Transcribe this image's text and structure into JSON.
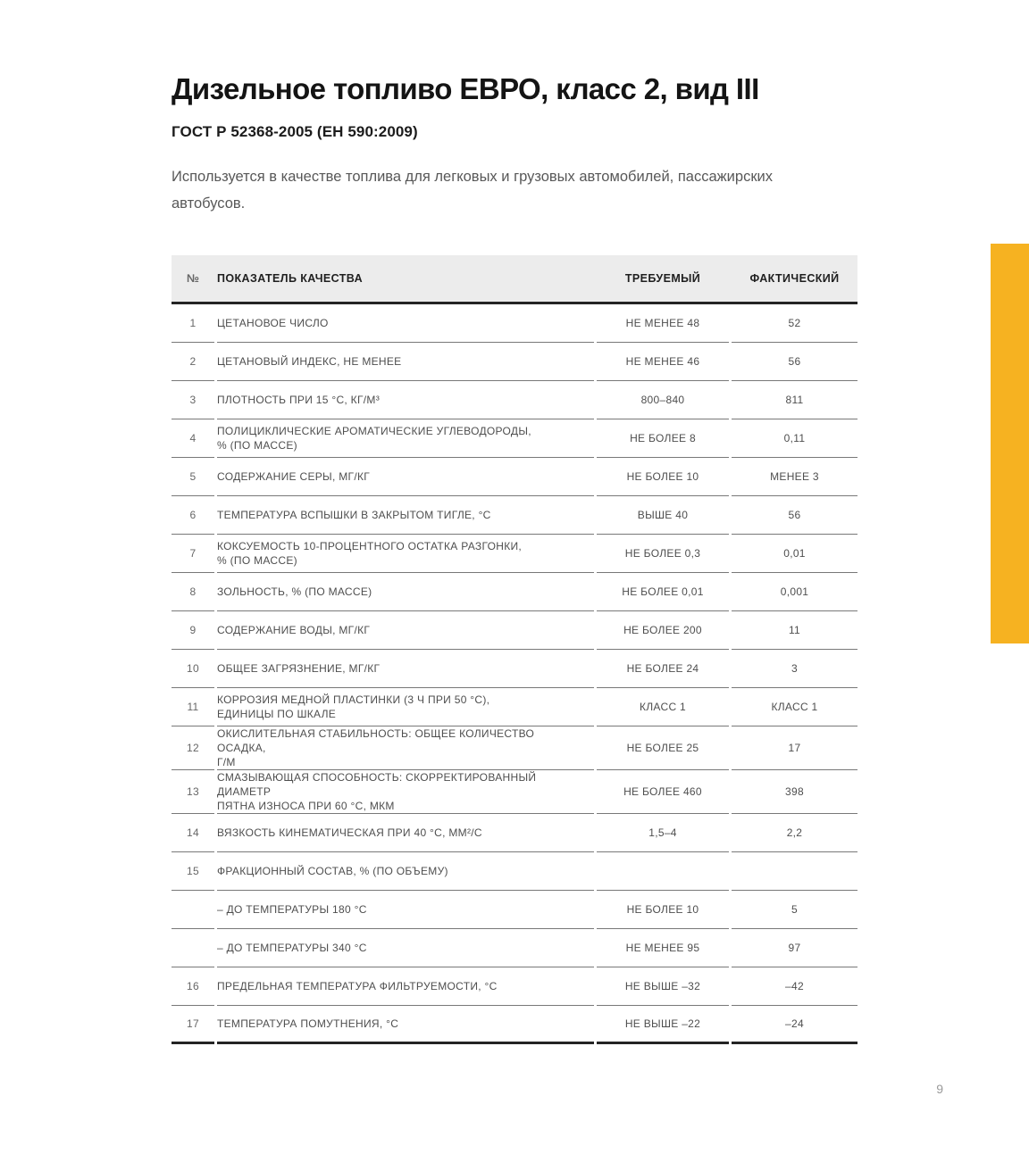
{
  "page": {
    "title": "Дизельное топливо ЕВРО, класс 2, вид III",
    "subtitle": "ГОСТ Р 52368-2005 (ЕН 590:2009)",
    "description": "Используется в качестве топлива для легковых и грузовых автомобилей, пассажирских автобусов.",
    "page_number": "9",
    "accent_color": "#F6B221"
  },
  "table": {
    "headers": {
      "num": "№",
      "name": "ПОКАЗАТЕЛЬ КАЧЕСТВА",
      "required": "ТРЕБУЕМЫЙ",
      "actual": "ФАКТИЧЕСКИЙ"
    },
    "rows": [
      {
        "num": "1",
        "name": "ЦЕТАНОВОЕ ЧИСЛО",
        "required": "НЕ МЕНЕЕ 48",
        "actual": "52",
        "indent": false
      },
      {
        "num": "2",
        "name": "ЦЕТАНОВЫЙ ИНДЕКС, НЕ МЕНЕЕ",
        "required": "НЕ МЕНЕЕ 46",
        "actual": "56",
        "indent": false
      },
      {
        "num": "3",
        "name": "ПЛОТНОСТЬ ПРИ 15 °С, КГ/М³",
        "required": "800–840",
        "actual": "811",
        "indent": false
      },
      {
        "num": "4",
        "name": "ПОЛИЦИКЛИЧЕСКИЕ АРОМАТИЧЕСКИЕ УГЛЕВОДОРОДЫ,\n% (ПО МАССЕ)",
        "required": "НЕ БОЛЕЕ 8",
        "actual": "0,11",
        "indent": false
      },
      {
        "num": "5",
        "name": "СОДЕРЖАНИЕ СЕРЫ, МГ/КГ",
        "required": "НЕ БОЛЕЕ 10",
        "actual": "МЕНЕЕ 3",
        "indent": false
      },
      {
        "num": "6",
        "name": "ТЕМПЕРАТУРА ВСПЫШКИ В ЗАКРЫТОМ ТИГЛЕ, °С",
        "required": "ВЫШЕ 40",
        "actual": "56",
        "indent": false
      },
      {
        "num": "7",
        "name": "КОКСУЕМОСТЬ 10-ПРОЦЕНТНОГО ОСТАТКА РАЗГОНКИ,\n% (ПО МАССЕ)",
        "required": "НЕ БОЛЕЕ 0,3",
        "actual": "0,01",
        "indent": false
      },
      {
        "num": "8",
        "name": "ЗОЛЬНОСТЬ, % (ПО МАССЕ)",
        "required": "НЕ БОЛЕЕ 0,01",
        "actual": "0,001",
        "indent": false
      },
      {
        "num": "9",
        "name": "СОДЕРЖАНИЕ ВОДЫ, МГ/КГ",
        "required": "НЕ БОЛЕЕ 200",
        "actual": "11",
        "indent": false
      },
      {
        "num": "10",
        "name": "ОБЩЕЕ ЗАГРЯЗНЕНИЕ, МГ/КГ",
        "required": "НЕ БОЛЕЕ 24",
        "actual": "3",
        "indent": false
      },
      {
        "num": "11",
        "name": "КОРРОЗИЯ МЕДНОЙ ПЛАСТИНКИ (3 Ч ПРИ 50 °С),\nЕДИНИЦЫ ПО ШКАЛЕ",
        "required": "КЛАСС 1",
        "actual": "КЛАСС 1",
        "indent": false
      },
      {
        "num": "12",
        "name": "ОКИСЛИТЕЛЬНАЯ СТАБИЛЬНОСТЬ: ОБЩЕЕ КОЛИЧЕСТВО ОСАДКА,\nГ/М",
        "required": "НЕ БОЛЕЕ 25",
        "actual": "17",
        "indent": false
      },
      {
        "num": "13",
        "name": "СМАЗЫВАЮЩАЯ СПОСОБНОСТЬ: СКОРРЕКТИРОВАННЫЙ ДИАМЕТР\nПЯТНА ИЗНОСА ПРИ 60 °С, МКМ",
        "required": "НЕ БОЛЕЕ 460",
        "actual": "398",
        "indent": false
      },
      {
        "num": "14",
        "name": "ВЯЗКОСТЬ КИНЕМАТИЧЕСКАЯ ПРИ 40 °С, ММ²/С",
        "required": "1,5–4",
        "actual": "2,2",
        "indent": false
      },
      {
        "num": "15",
        "name": "ФРАКЦИОННЫЙ СОСТАВ, % (ПО ОБЪЕМУ)",
        "required": "",
        "actual": "",
        "indent": false
      },
      {
        "num": "",
        "name": "–  ДО ТЕМПЕРАТУРЫ 180 °С",
        "required": "НЕ БОЛЕЕ 10",
        "actual": "5",
        "indent": true
      },
      {
        "num": "",
        "name": "–  ДО ТЕМПЕРАТУРЫ 340 °С",
        "required": "НЕ МЕНЕЕ 95",
        "actual": "97",
        "indent": true
      },
      {
        "num": "16",
        "name": "ПРЕДЕЛЬНАЯ ТЕМПЕРАТУРА ФИЛЬТРУЕМОСТИ, °С",
        "required": "НЕ ВЫШЕ –32",
        "actual": "–42",
        "indent": false
      },
      {
        "num": "17",
        "name": "ТЕМПЕРАТУРА ПОМУТНЕНИЯ, °С",
        "required": "НЕ ВЫШЕ –22",
        "actual": "–24",
        "indent": false
      }
    ]
  }
}
